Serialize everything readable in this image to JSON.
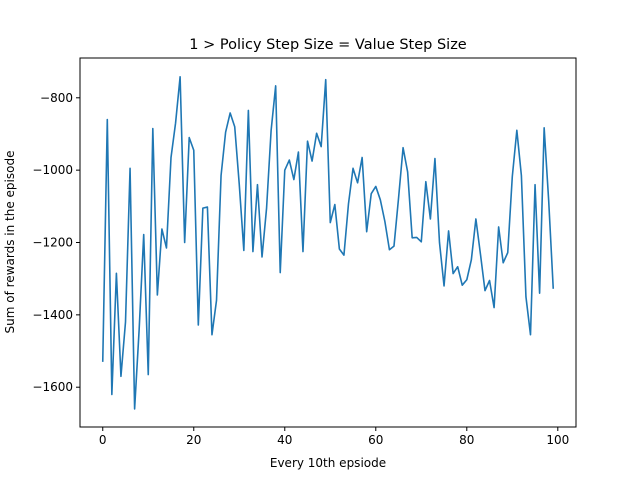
{
  "chart_data": {
    "type": "line",
    "title": "1 > Policy Step Size = Value Step Size",
    "xlabel": "Every 10th epsiode",
    "ylabel": "Sum of rewards in the episode",
    "xlim": [
      -5,
      104
    ],
    "ylim": [
      -1710,
      -690
    ],
    "xticks": [
      0,
      20,
      40,
      60,
      80,
      100
    ],
    "yticks": [
      -1600,
      -1400,
      -1200,
      -1000,
      -800
    ],
    "xtick_labels": [
      "0",
      "20",
      "40",
      "60",
      "80",
      "100"
    ],
    "ytick_labels": [
      "−1600",
      "−1400",
      "−1200",
      "−1000",
      "−800"
    ],
    "grid": false,
    "series": [
      {
        "color": "#1f77b4",
        "x": [
          0,
          1,
          2,
          3,
          4,
          5,
          6,
          7,
          8,
          9,
          10,
          11,
          12,
          13,
          14,
          15,
          16,
          17,
          18,
          19,
          20,
          21,
          22,
          23,
          24,
          25,
          26,
          27,
          28,
          29,
          30,
          31,
          32,
          33,
          34,
          35,
          36,
          37,
          38,
          39,
          40,
          41,
          42,
          43,
          44,
          45,
          46,
          47,
          48,
          49,
          50,
          51,
          52,
          53,
          54,
          55,
          56,
          57,
          58,
          59,
          60,
          61,
          62,
          63,
          64,
          65,
          66,
          67,
          68,
          69,
          70,
          71,
          72,
          73,
          74,
          75,
          76,
          77,
          78,
          79,
          80,
          81,
          82,
          83,
          84,
          85,
          86,
          87,
          88,
          89,
          90,
          91,
          92,
          93,
          94,
          95,
          96,
          97,
          98,
          99
        ],
        "y": [
          -1530,
          -860,
          -1620,
          -1285,
          -1570,
          -1420,
          -995,
          -1660,
          -1440,
          -1178,
          -1565,
          -885,
          -1345,
          -1163,
          -1215,
          -965,
          -870,
          -742,
          -1200,
          -910,
          -945,
          -1428,
          -1105,
          -1102,
          -1455,
          -1360,
          -1015,
          -895,
          -842,
          -880,
          -1040,
          -1222,
          -835,
          -1225,
          -1040,
          -1240,
          -1105,
          -890,
          -767,
          -1283,
          -1000,
          -972,
          -1026,
          -950,
          -1225,
          -920,
          -975,
          -898,
          -935,
          -750,
          -1145,
          -1095,
          -1218,
          -1235,
          -1093,
          -995,
          -1035,
          -965,
          -1170,
          -1065,
          -1045,
          -1082,
          -1142,
          -1220,
          -1210,
          -1078,
          -938,
          -1005,
          -1187,
          -1186,
          -1198,
          -1032,
          -1135,
          -968,
          -1200,
          -1320,
          -1168,
          -1286,
          -1267,
          -1318,
          -1303,
          -1248,
          -1135,
          -1232,
          -1333,
          -1305,
          -1380,
          -1157,
          -1256,
          -1228,
          -1018,
          -890,
          -1015,
          -1350,
          -1455,
          -1040,
          -1340,
          -883,
          -1085,
          -1328
        ]
      }
    ]
  }
}
